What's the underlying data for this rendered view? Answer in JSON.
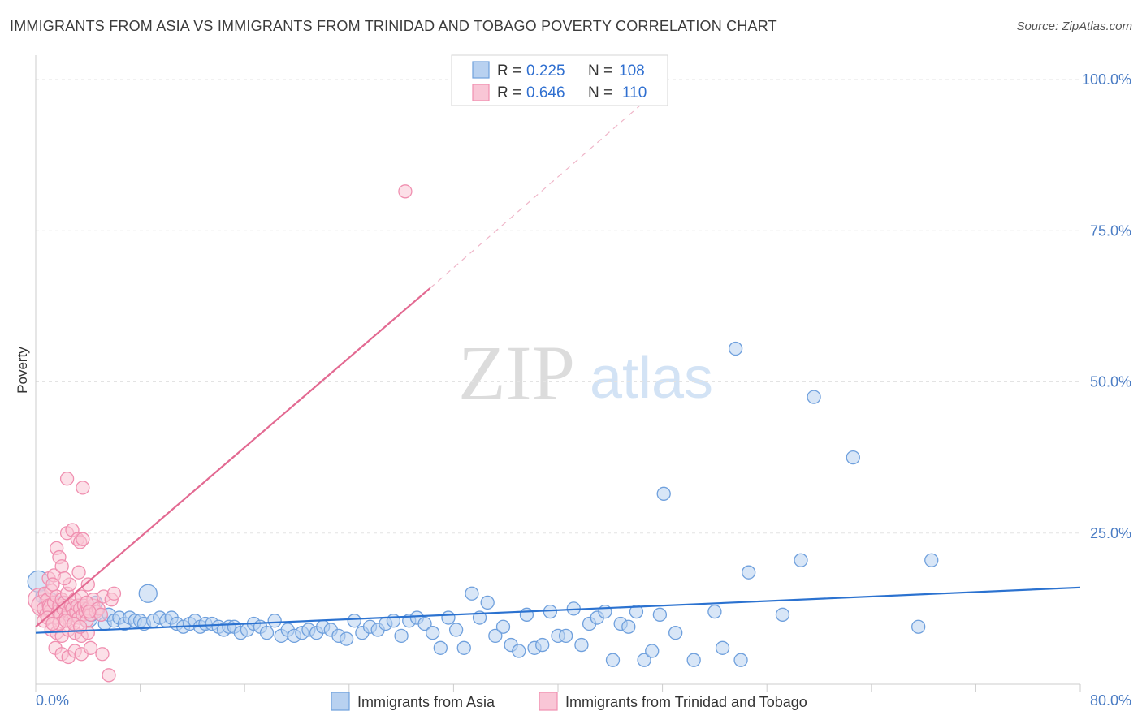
{
  "title": "IMMIGRANTS FROM ASIA VS IMMIGRANTS FROM TRINIDAD AND TOBAGO POVERTY CORRELATION CHART",
  "source": "Source: ZipAtlas.com",
  "watermark": {
    "zip": "ZIP",
    "atlas": "atlas"
  },
  "chart_data": {
    "type": "scatter",
    "title": "IMMIGRANTS FROM ASIA VS IMMIGRANTS FROM TRINIDAD AND TOBAGO POVERTY CORRELATION CHART",
    "xlabel": "",
    "ylabel": "Poverty",
    "xlim": [
      0,
      80
    ],
    "ylim": [
      0,
      100
    ],
    "x_tick_labels": {
      "min": "0.0%",
      "max": "80.0%"
    },
    "y_ticks": [
      {
        "value": 25,
        "label": "25.0%"
      },
      {
        "value": 50,
        "label": "50.0%"
      },
      {
        "value": 75,
        "label": "75.0%"
      },
      {
        "value": 100,
        "label": "100.0%"
      }
    ],
    "grid": true,
    "legend_position": "top-center",
    "legend": [
      {
        "r_label": "R =",
        "r_value": "0.225",
        "n_label": "N =",
        "n_value": "108"
      },
      {
        "r_label": "R =",
        "r_value": "0.646",
        "n_label": "N =",
        "n_value": "110"
      }
    ],
    "series": [
      {
        "name": "Immigrants from Asia",
        "color": "#6fa0dd",
        "fill": "#b8d1f0",
        "trend_color": "#2b72d0",
        "trend": {
          "x": [
            0,
            80
          ],
          "y": [
            8.5,
            16.0
          ]
        },
        "points": [
          [
            0.2,
            17.0
          ],
          [
            0.5,
            14.5
          ],
          [
            0.8,
            13.8
          ],
          [
            1.0,
            12.5
          ],
          [
            1.2,
            14.0
          ],
          [
            1.5,
            13.0
          ],
          [
            1.8,
            12.0
          ],
          [
            2.0,
            13.5
          ],
          [
            2.3,
            12.0
          ],
          [
            2.6,
            11.5
          ],
          [
            3.0,
            12.5
          ],
          [
            3.3,
            13.0
          ],
          [
            3.6,
            12.0
          ],
          [
            4.0,
            11.0
          ],
          [
            4.3,
            11.5
          ],
          [
            4.6,
            13.5
          ],
          [
            5.0,
            11.5
          ],
          [
            5.3,
            10.0
          ],
          [
            5.6,
            11.5
          ],
          [
            6.0,
            10.5
          ],
          [
            6.4,
            11.0
          ],
          [
            6.8,
            10.0
          ],
          [
            7.2,
            11.0
          ],
          [
            7.6,
            10.5
          ],
          [
            8.0,
            10.5
          ],
          [
            8.3,
            10.0
          ],
          [
            8.6,
            15.0
          ],
          [
            9.0,
            10.5
          ],
          [
            9.5,
            11.0
          ],
          [
            10.0,
            10.5
          ],
          [
            10.4,
            11.0
          ],
          [
            10.8,
            10.0
          ],
          [
            11.3,
            9.5
          ],
          [
            11.8,
            10.0
          ],
          [
            12.2,
            10.5
          ],
          [
            12.6,
            9.5
          ],
          [
            13.0,
            10.0
          ],
          [
            13.5,
            10.0
          ],
          [
            14.0,
            9.5
          ],
          [
            14.4,
            9.0
          ],
          [
            14.8,
            9.5
          ],
          [
            15.2,
            9.5
          ],
          [
            15.7,
            8.5
          ],
          [
            16.2,
            9.0
          ],
          [
            16.7,
            10.0
          ],
          [
            17.2,
            9.5
          ],
          [
            17.7,
            8.5
          ],
          [
            18.3,
            10.5
          ],
          [
            18.8,
            8.0
          ],
          [
            19.3,
            9.0
          ],
          [
            19.8,
            8.0
          ],
          [
            20.4,
            8.5
          ],
          [
            20.9,
            9.0
          ],
          [
            21.5,
            8.5
          ],
          [
            22.0,
            9.5
          ],
          [
            22.6,
            9.0
          ],
          [
            23.2,
            8.0
          ],
          [
            23.8,
            7.5
          ],
          [
            24.4,
            10.5
          ],
          [
            25.0,
            8.5
          ],
          [
            25.6,
            9.5
          ],
          [
            26.2,
            9.0
          ],
          [
            26.8,
            10.0
          ],
          [
            27.4,
            10.5
          ],
          [
            28.0,
            8.0
          ],
          [
            28.6,
            10.5
          ],
          [
            29.2,
            11.0
          ],
          [
            29.8,
            10.0
          ],
          [
            30.4,
            8.5
          ],
          [
            31.0,
            6.0
          ],
          [
            31.6,
            11.0
          ],
          [
            32.2,
            9.0
          ],
          [
            32.8,
            6.0
          ],
          [
            33.4,
            15.0
          ],
          [
            34.0,
            11.0
          ],
          [
            34.6,
            13.5
          ],
          [
            35.2,
            8.0
          ],
          [
            35.8,
            9.5
          ],
          [
            36.4,
            6.5
          ],
          [
            37.0,
            5.5
          ],
          [
            37.6,
            11.5
          ],
          [
            38.2,
            6.0
          ],
          [
            38.8,
            6.5
          ],
          [
            39.4,
            12.0
          ],
          [
            40.0,
            8.0
          ],
          [
            40.6,
            8.0
          ],
          [
            41.2,
            12.5
          ],
          [
            41.8,
            6.5
          ],
          [
            42.4,
            10.0
          ],
          [
            43.0,
            11.0
          ],
          [
            43.6,
            12.0
          ],
          [
            44.2,
            4.0
          ],
          [
            44.8,
            10.0
          ],
          [
            45.4,
            9.5
          ],
          [
            46.0,
            12.0
          ],
          [
            46.6,
            4.0
          ],
          [
            47.2,
            5.5
          ],
          [
            47.8,
            11.5
          ],
          [
            48.1,
            31.5
          ],
          [
            49.0,
            8.5
          ],
          [
            50.4,
            4.0
          ],
          [
            52.0,
            12.0
          ],
          [
            52.6,
            6.0
          ],
          [
            53.6,
            55.5
          ],
          [
            54.0,
            4.0
          ],
          [
            54.6,
            18.5
          ],
          [
            57.2,
            11.5
          ],
          [
            58.6,
            20.5
          ],
          [
            59.6,
            47.5
          ],
          [
            62.6,
            37.5
          ],
          [
            67.6,
            9.5
          ],
          [
            68.6,
            20.5
          ]
        ],
        "sizes": {
          "0": 13,
          "12": 12,
          "13": 12,
          "26": 11
        }
      },
      {
        "name": "Immigrants from Trinidad and Tobago",
        "color": "#f08fb0",
        "fill": "#f9c6d6",
        "trend_color": "#e36a92",
        "trend_solid": {
          "x": [
            0,
            30.2
          ],
          "y": [
            9.5,
            65.5
          ]
        },
        "trend_dashed": {
          "x": [
            30.2,
            47.5
          ],
          "y": [
            65.5,
            98.0
          ]
        },
        "points": [
          [
            0.3,
            14.0
          ],
          [
            0.5,
            13.0
          ],
          [
            0.6,
            12.5
          ],
          [
            0.7,
            15.0
          ],
          [
            0.8,
            11.5
          ],
          [
            0.9,
            14.0
          ],
          [
            1.0,
            13.0
          ],
          [
            1.1,
            12.0
          ],
          [
            1.2,
            15.5
          ],
          [
            1.3,
            12.5
          ],
          [
            1.4,
            13.5
          ],
          [
            1.5,
            11.0
          ],
          [
            1.6,
            14.5
          ],
          [
            1.7,
            12.0
          ],
          [
            1.8,
            13.0
          ],
          [
            1.9,
            11.5
          ],
          [
            2.0,
            14.0
          ],
          [
            2.1,
            12.5
          ],
          [
            2.2,
            13.5
          ],
          [
            2.3,
            11.0
          ],
          [
            2.4,
            15.0
          ],
          [
            2.5,
            12.0
          ],
          [
            2.6,
            10.5
          ],
          [
            2.7,
            13.0
          ],
          [
            2.8,
            12.5
          ],
          [
            2.9,
            11.5
          ],
          [
            3.0,
            14.0
          ],
          [
            3.1,
            12.0
          ],
          [
            3.2,
            13.0
          ],
          [
            3.3,
            11.0
          ],
          [
            3.4,
            12.5
          ],
          [
            3.5,
            14.5
          ],
          [
            3.6,
            11.5
          ],
          [
            3.7,
            13.0
          ],
          [
            3.8,
            12.0
          ],
          [
            3.9,
            10.5
          ],
          [
            4.0,
            12.5
          ],
          [
            4.2,
            11.5
          ],
          [
            4.4,
            13.0
          ],
          [
            4.6,
            12.0
          ],
          [
            1.0,
            17.5
          ],
          [
            1.4,
            18.0
          ],
          [
            1.6,
            22.5
          ],
          [
            1.8,
            21.0
          ],
          [
            2.0,
            19.5
          ],
          [
            2.4,
            25.0
          ],
          [
            2.8,
            25.5
          ],
          [
            3.2,
            24.0
          ],
          [
            3.4,
            23.5
          ],
          [
            3.6,
            24.0
          ],
          [
            3.3,
            18.5
          ],
          [
            2.6,
            16.5
          ],
          [
            2.2,
            17.5
          ],
          [
            1.3,
            16.5
          ],
          [
            4.0,
            16.5
          ],
          [
            4.4,
            14.0
          ],
          [
            5.2,
            14.5
          ],
          [
            5.8,
            14.0
          ],
          [
            6.0,
            15.0
          ],
          [
            2.4,
            34.0
          ],
          [
            3.6,
            32.5
          ],
          [
            1.2,
            9.0
          ],
          [
            1.6,
            8.5
          ],
          [
            2.0,
            8.0
          ],
          [
            2.5,
            9.0
          ],
          [
            3.0,
            8.5
          ],
          [
            3.5,
            8.0
          ],
          [
            4.0,
            8.5
          ],
          [
            1.5,
            6.0
          ],
          [
            2.0,
            5.0
          ],
          [
            2.5,
            4.5
          ],
          [
            3.0,
            5.5
          ],
          [
            3.5,
            5.0
          ],
          [
            4.2,
            6.0
          ],
          [
            5.1,
            5.0
          ],
          [
            5.6,
            1.5
          ],
          [
            1.8,
            10.0
          ],
          [
            2.3,
            10.5
          ],
          [
            2.9,
            10.0
          ],
          [
            3.4,
            9.5
          ],
          [
            0.6,
            10.5
          ],
          [
            0.9,
            11.0
          ],
          [
            1.3,
            10.0
          ],
          [
            4.8,
            12.5
          ],
          [
            5.0,
            11.5
          ],
          [
            3.9,
            13.5
          ],
          [
            4.1,
            12.0
          ],
          [
            28.3,
            81.5
          ]
        ],
        "sizes": {
          "0": 14,
          "1": 13,
          "9": 12
        }
      }
    ]
  },
  "bottom_legend": [
    {
      "label": "Immigrants from Asia"
    },
    {
      "label": "Immigrants from Trinidad and Tobago"
    }
  ]
}
